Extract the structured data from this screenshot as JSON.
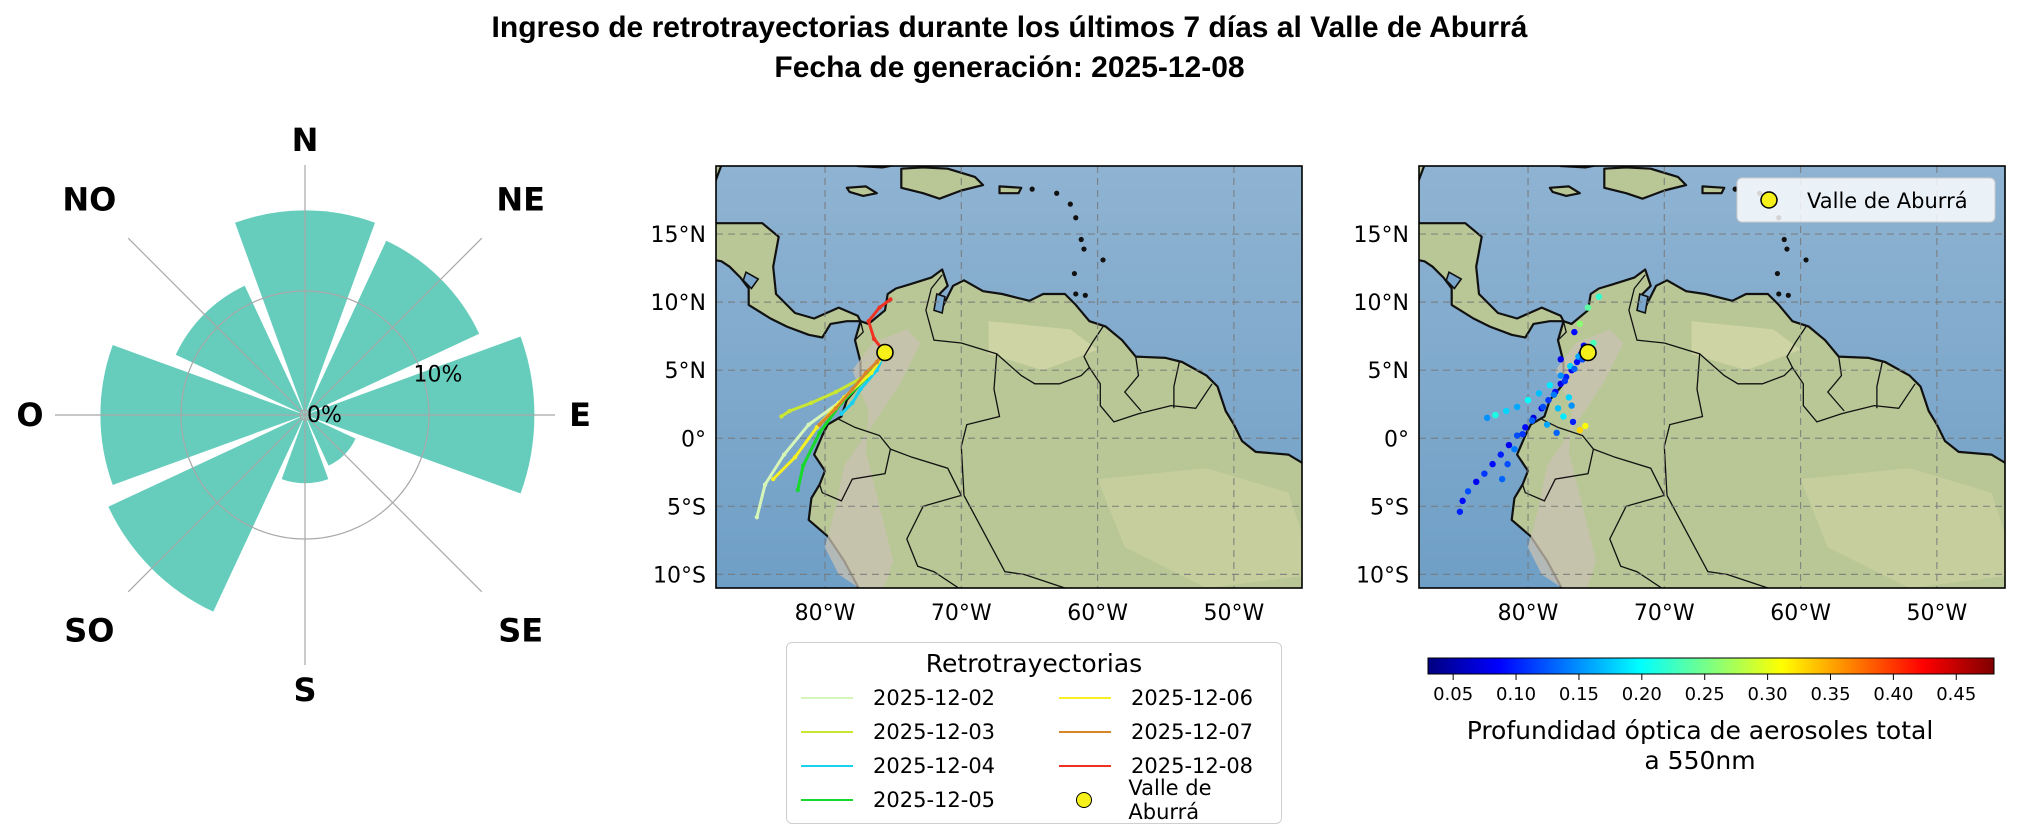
{
  "title": {
    "line1": "Ingreso de retrotrayectorias durante los últimos 7 días al Valle de Aburrá",
    "line2": "Fecha de generación: 2025-12-08"
  },
  "colors": {
    "rose_fill": "#66cdbd",
    "point_marker": "#f5f01a",
    "ocean": "#6f9fc6",
    "land": "#b9c796"
  },
  "rose": {
    "directions": [
      "N",
      "NE",
      "E",
      "SE",
      "S",
      "SO",
      "O",
      "NO"
    ],
    "ring_labels": [
      "0%",
      "10%"
    ],
    "ring_values": [
      0,
      10
    ],
    "sector_width_deg": 40,
    "sectors": [
      {
        "direction": "N",
        "bearing": 0,
        "value": 16.5
      },
      {
        "direction": "NE",
        "bearing": 45,
        "value": 15.5
      },
      {
        "direction": "E",
        "bearing": 90,
        "value": 18.5
      },
      {
        "direction": "SE",
        "bearing": 135,
        "value": 4.5
      },
      {
        "direction": "S",
        "bearing": 180,
        "value": 5.5
      },
      {
        "direction": "SO",
        "bearing": 225,
        "value": 17.5
      },
      {
        "direction": "O",
        "bearing": 270,
        "value": 16.5
      },
      {
        "direction": "NO",
        "bearing": 315,
        "value": 11.5
      }
    ]
  },
  "maps": {
    "lon_ticks": [
      "80°W",
      "70°W",
      "60°W",
      "50°W"
    ],
    "lon_tick_values": [
      -80,
      -70,
      -60,
      -50
    ],
    "lat_ticks": [
      "15°N",
      "10°N",
      "5°N",
      "0°",
      "5°S",
      "10°S"
    ],
    "lat_tick_values": [
      15,
      10,
      5,
      0,
      -5,
      -10
    ],
    "extent": {
      "lon": [
        -88,
        -45
      ],
      "lat": [
        -11,
        20
      ]
    },
    "station": {
      "name": "Valle de Aburrá",
      "lon": -75.6,
      "lat": 6.3
    },
    "map2_legend_label": "Valle de Aburrá"
  },
  "legend": {
    "title": "Retrotrayectorias",
    "items": [
      {
        "label": "2025-12-02",
        "color": "#d6f5b8"
      },
      {
        "label": "2025-12-03",
        "color": "#c8e632"
      },
      {
        "label": "2025-12-04",
        "color": "#19d0f0"
      },
      {
        "label": "2025-12-05",
        "color": "#18d82e"
      },
      {
        "label": "2025-12-06",
        "color": "#f5ef24"
      },
      {
        "label": "2025-12-07",
        "color": "#d8862a"
      },
      {
        "label": "2025-12-08",
        "color": "#ee3322"
      }
    ],
    "station_label": "Valle de Aburrá"
  },
  "colorbar": {
    "ticks": [
      "0.05",
      "0.10",
      "0.15",
      "0.20",
      "0.25",
      "0.30",
      "0.35",
      "0.40",
      "0.45"
    ],
    "tick_values": [
      0.05,
      0.1,
      0.15,
      0.2,
      0.25,
      0.3,
      0.35,
      0.4,
      0.45
    ],
    "range": [
      0.03,
      0.48
    ],
    "label_line1": "Profundidad óptica de aerosoles total",
    "label_line2": "a 550nm"
  },
  "chart_data": [
    {
      "type": "bar",
      "categories": [
        "N",
        "NE",
        "E",
        "SE",
        "S",
        "SO",
        "O",
        "NO"
      ],
      "values": [
        16.5,
        15.5,
        18.5,
        4.5,
        5.5,
        17.5,
        16.5,
        11.5
      ],
      "ylim": [
        0,
        19
      ]
    },
    {
      "type": "line",
      "xlim": [
        -88,
        -45
      ],
      "ylim": [
        -11,
        20
      ],
      "series": [
        {
          "name": "2025-12-02",
          "points": [
            [
              -75.6,
              6.3
            ],
            [
              -77.2,
              4.3
            ],
            [
              -79.0,
              2.6
            ],
            [
              -81.2,
              1.0
            ],
            [
              -83.0,
              -1.2
            ],
            [
              -84.4,
              -3.4
            ],
            [
              -85.0,
              -5.8
            ]
          ]
        },
        {
          "name": "2025-12-03",
          "points": [
            [
              -75.6,
              6.3
            ],
            [
              -77.0,
              4.6
            ],
            [
              -79.2,
              3.4
            ],
            [
              -81.0,
              2.6
            ],
            [
              -82.6,
              2.0
            ],
            [
              -83.2,
              1.6
            ]
          ]
        },
        {
          "name": "2025-12-04",
          "points": [
            [
              -75.6,
              6.3
            ],
            [
              -76.2,
              5.0
            ],
            [
              -77.4,
              3.6
            ],
            [
              -78.0,
              2.6
            ],
            [
              -78.8,
              1.8
            ]
          ]
        },
        {
          "name": "2025-12-05",
          "points": [
            [
              -75.6,
              6.3
            ],
            [
              -77.0,
              4.4
            ],
            [
              -78.8,
              2.6
            ],
            [
              -80.4,
              0.4
            ],
            [
              -81.6,
              -2.0
            ],
            [
              -82.0,
              -3.8
            ]
          ]
        },
        {
          "name": "2025-12-06",
          "points": [
            [
              -75.6,
              6.3
            ],
            [
              -76.6,
              4.8
            ],
            [
              -78.6,
              3.0
            ],
            [
              -80.6,
              0.8
            ],
            [
              -82.2,
              -1.4
            ],
            [
              -83.8,
              -3.0
            ]
          ]
        },
        {
          "name": "2025-12-07",
          "points": [
            [
              -75.6,
              6.3
            ],
            [
              -76.2,
              5.6
            ],
            [
              -77.0,
              4.8
            ],
            [
              -78.0,
              3.6
            ],
            [
              -79.2,
              2.2
            ],
            [
              -80.4,
              1.0
            ]
          ]
        },
        {
          "name": "2025-12-08",
          "points": [
            [
              -75.6,
              6.3
            ],
            [
              -76.4,
              7.3
            ],
            [
              -76.8,
              8.6
            ],
            [
              -76.0,
              9.6
            ],
            [
              -75.2,
              10.2
            ]
          ]
        }
      ]
    },
    {
      "type": "scatter",
      "xlim": [
        -88,
        -45
      ],
      "ylim": [
        -11,
        20
      ],
      "value_range": [
        0.03,
        0.48
      ],
      "points": [
        [
          -75.9,
          6.8,
          0.08
        ],
        [
          -76.1,
          6.2,
          0.07
        ],
        [
          -76.4,
          5.6,
          0.09
        ],
        [
          -76.8,
          5.0,
          0.08
        ],
        [
          -77.2,
          4.5,
          0.1
        ],
        [
          -77.6,
          4.0,
          0.08
        ],
        [
          -78.0,
          3.4,
          0.09
        ],
        [
          -78.5,
          2.8,
          0.11
        ],
        [
          -79.0,
          2.2,
          0.08
        ],
        [
          -79.6,
          1.5,
          0.07
        ],
        [
          -80.2,
          0.8,
          0.09
        ],
        [
          -80.8,
          0.2,
          0.12
        ],
        [
          -81.4,
          -0.5,
          0.08
        ],
        [
          -82.0,
          -1.2,
          0.1
        ],
        [
          -82.6,
          -1.9,
          0.09
        ],
        [
          -83.2,
          -2.6,
          0.11
        ],
        [
          -83.8,
          -3.2,
          0.08
        ],
        [
          -84.4,
          -3.9,
          0.12
        ],
        [
          -84.8,
          -4.6,
          0.09
        ],
        [
          -85.0,
          -5.4,
          0.1
        ],
        [
          -76.3,
          6.0,
          0.16
        ],
        [
          -76.9,
          5.3,
          0.18
        ],
        [
          -77.6,
          4.6,
          0.15
        ],
        [
          -78.4,
          3.9,
          0.19
        ],
        [
          -79.2,
          3.3,
          0.17
        ],
        [
          -80.0,
          2.8,
          0.2
        ],
        [
          -80.8,
          2.3,
          0.16
        ],
        [
          -81.6,
          2.0,
          0.18
        ],
        [
          -82.4,
          1.7,
          0.21
        ],
        [
          -83.0,
          1.5,
          0.15
        ],
        [
          -76.0,
          5.8,
          0.12
        ],
        [
          -76.6,
          5.1,
          0.13
        ],
        [
          -77.3,
          4.2,
          0.11
        ],
        [
          -78.1,
          3.2,
          0.14
        ],
        [
          -78.9,
          2.3,
          0.12
        ],
        [
          -79.7,
          1.3,
          0.13
        ],
        [
          -80.4,
          0.3,
          0.11
        ],
        [
          -81.0,
          -0.8,
          0.14
        ],
        [
          -81.5,
          -1.9,
          0.12
        ],
        [
          -81.9,
          -3.0,
          0.13
        ],
        [
          -75.2,
          7.0,
          0.23
        ],
        [
          -76.2,
          8.4,
          0.26
        ],
        [
          -75.6,
          9.6,
          0.24
        ],
        [
          -74.8,
          10.4,
          0.22
        ],
        [
          -76.6,
          7.8,
          0.09
        ],
        [
          -77.0,
          3.0,
          0.18
        ],
        [
          -77.8,
          2.2,
          0.17
        ],
        [
          -78.6,
          1.0,
          0.16
        ],
        [
          -77.4,
          1.6,
          0.19
        ],
        [
          -76.8,
          2.4,
          0.15
        ],
        [
          -76.2,
          0.6,
          0.33
        ],
        [
          -75.8,
          0.9,
          0.31
        ],
        [
          -77.9,
          0.4,
          0.13
        ],
        [
          -76.7,
          1.2,
          0.1
        ],
        [
          -77.6,
          5.8,
          0.08
        ]
      ]
    }
  ]
}
